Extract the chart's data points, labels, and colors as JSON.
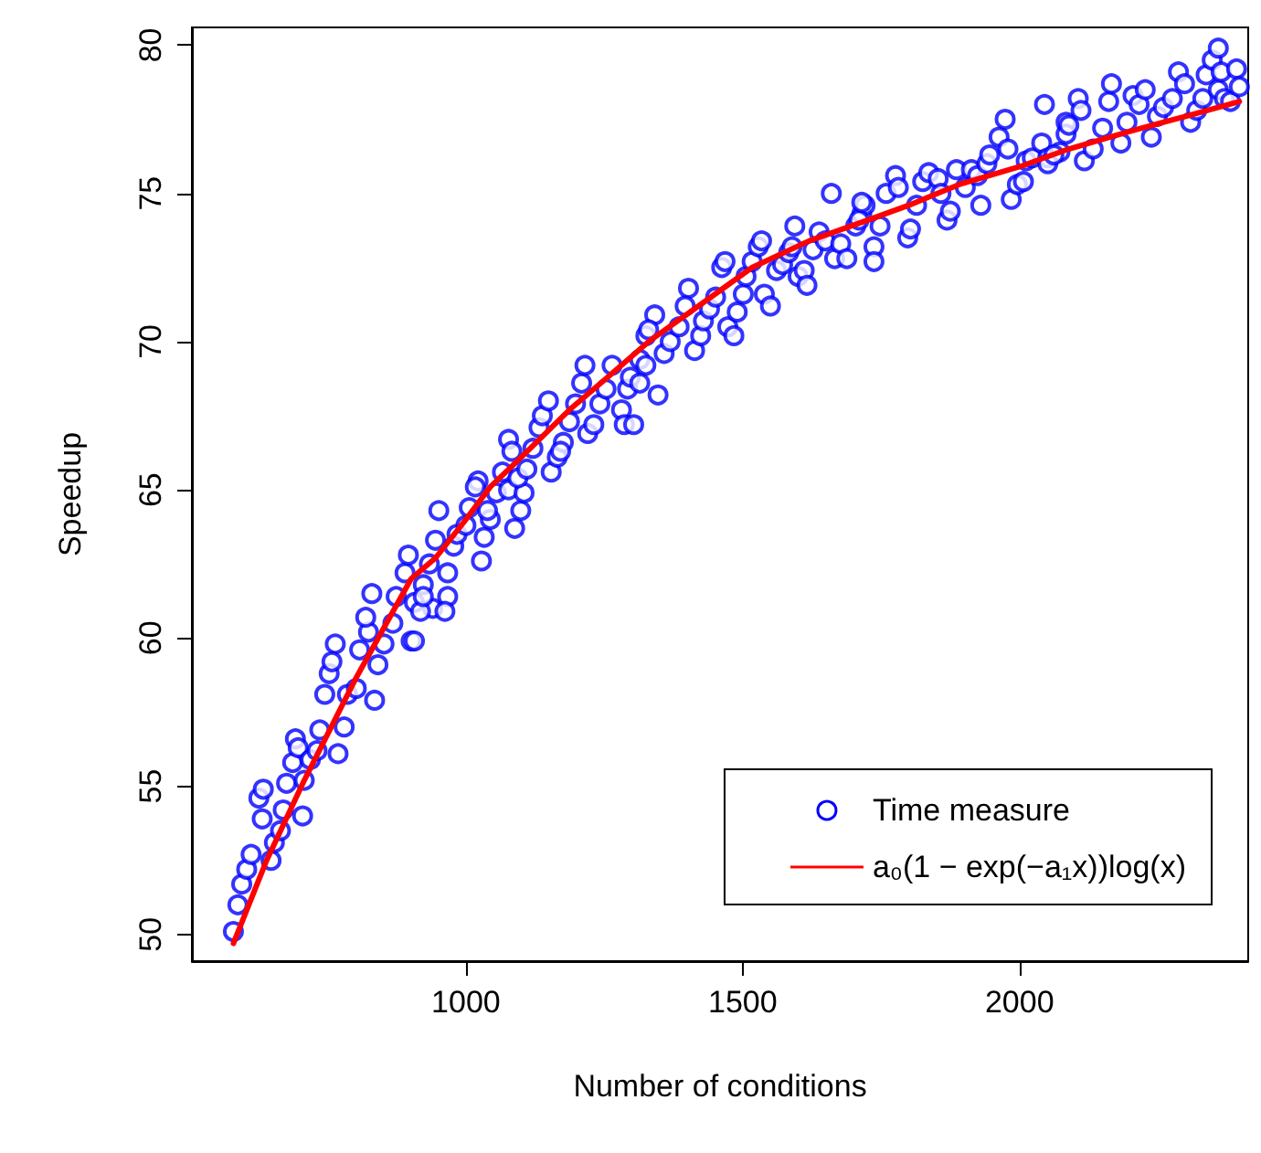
{
  "chart_data": {
    "type": "scatter",
    "xlabel": "Number of conditions",
    "ylabel": "Speedup",
    "xlim": [
      505,
      2413
    ],
    "ylim": [
      49.1,
      80.6
    ],
    "xticks": [
      1000,
      1500,
      2000
    ],
    "yticks": [
      50,
      55,
      60,
      65,
      70,
      75,
      80
    ],
    "grid": false,
    "legend": "bottom right",
    "marker": "circle",
    "series": [
      {
        "name": "Time measure",
        "color": "#0000ff",
        "x": [
          580,
          588,
          595,
          604,
          612,
          632,
          626,
          634,
          648,
          654,
          665,
          670,
          676,
          687,
          692,
          697,
          708,
          719,
          736,
          731,
          705,
          769,
          780,
          745,
          753,
          764,
          758,
          786,
          802,
          808,
          824,
          819,
          835,
          841,
          852,
          830,
          868,
          874,
          901,
          890,
          907,
          923,
          940,
          896,
          907,
          918,
          923,
          967,
          962,
          967,
          934,
          945,
          951,
          978,
          984,
          1000,
          1006,
          1022,
          1017,
          1028,
          1033,
          1044,
          1039,
          1055,
          1066,
          1077,
          1088,
          1099,
          1105,
          1094,
          1110,
          1077,
          1083,
          1121,
          1132,
          1138,
          1149,
          1154,
          1165,
          1176,
          1171,
          1187,
          1198,
          1209,
          1215,
          1220,
          1231,
          1242,
          1253,
          1264,
          1281,
          1286,
          1292,
          1297,
          1314,
          1325,
          1303,
          1314,
          1325,
          1347,
          1341,
          1330,
          1358,
          1369,
          1385,
          1402,
          1396,
          1413,
          1424,
          1429,
          1440,
          1451,
          1462,
          1468,
          1473,
          1484,
          1490,
          1501,
          1506,
          1517,
          1528,
          1534,
          1539,
          1550,
          1561,
          1572,
          1583,
          1589,
          1594,
          1600,
          1611,
          1616,
          1627,
          1638,
          1649,
          1660,
          1666,
          1677,
          1688,
          1704,
          1715,
          1721,
          1710,
          1715,
          1737,
          1737,
          1748,
          1759,
          1776,
          1781,
          1798,
          1803,
          1814,
          1825,
          1836,
          1853,
          1858,
          1869,
          1875,
          1886,
          1902,
          1913,
          1924,
          1930,
          1941,
          1946,
          1963,
          1974,
          1979,
          1985,
          1996,
          2007,
          2012,
          2023,
          2040,
          2051,
          2073,
          2045,
          2084,
          2051,
          2062,
          2084,
          2089,
          2106,
          2111,
          2117,
          2133,
          2150,
          2161,
          2166,
          2183,
          2194,
          2205,
          2216,
          2227,
          2238,
          2249,
          2260,
          2276,
          2287,
          2298,
          2309,
          2320,
          2331,
          2337,
          2348,
          2359,
          2364,
          2370,
          2381,
          2392,
          2397,
          2359
        ],
        "values": [
          50.1,
          51.0,
          51.7,
          52.2,
          52.7,
          53.9,
          54.6,
          54.9,
          52.5,
          53.1,
          53.5,
          54.2,
          55.1,
          55.8,
          56.6,
          56.3,
          55.2,
          55.9,
          56.9,
          56.2,
          54.0,
          56.1,
          57.0,
          58.1,
          58.8,
          59.8,
          59.2,
          58.1,
          58.3,
          59.6,
          60.2,
          60.7,
          57.9,
          59.1,
          59.8,
          61.5,
          60.5,
          61.4,
          59.9,
          62.2,
          61.2,
          61.8,
          61.0,
          62.8,
          59.9,
          60.9,
          61.4,
          61.4,
          60.9,
          62.2,
          62.5,
          63.3,
          64.3,
          63.1,
          63.5,
          63.8,
          64.4,
          65.3,
          65.1,
          62.6,
          63.4,
          64.0,
          64.3,
          64.9,
          65.6,
          65.0,
          63.7,
          64.3,
          64.9,
          65.4,
          65.7,
          66.7,
          66.3,
          66.4,
          67.1,
          67.5,
          68.0,
          65.6,
          66.1,
          66.6,
          66.3,
          67.3,
          67.9,
          68.6,
          69.2,
          66.9,
          67.2,
          67.9,
          68.4,
          69.2,
          67.7,
          67.2,
          68.4,
          68.8,
          69.4,
          70.2,
          67.2,
          68.6,
          69.2,
          68.2,
          70.9,
          70.4,
          69.6,
          70.0,
          70.5,
          71.8,
          71.2,
          69.7,
          70.2,
          70.7,
          71.1,
          71.5,
          72.5,
          72.7,
          70.5,
          70.2,
          71.0,
          71.6,
          72.2,
          72.7,
          73.2,
          73.4,
          71.6,
          71.2,
          72.4,
          72.6,
          73.0,
          73.2,
          73.9,
          72.2,
          72.4,
          71.9,
          73.1,
          73.7,
          73.4,
          75.0,
          72.8,
          73.3,
          72.8,
          73.9,
          74.3,
          74.6,
          74.1,
          74.7,
          73.2,
          72.7,
          73.9,
          75.0,
          75.6,
          75.2,
          73.5,
          73.8,
          74.6,
          75.4,
          75.7,
          75.5,
          75.0,
          74.1,
          74.4,
          75.8,
          75.2,
          75.8,
          75.6,
          74.6,
          76.0,
          76.3,
          76.9,
          77.5,
          76.5,
          74.8,
          75.3,
          75.4,
          76.1,
          76.2,
          76.7,
          76.2,
          76.4,
          78.0,
          77.4,
          76.0,
          76.3,
          77.0,
          77.3,
          78.2,
          77.8,
          76.1,
          76.5,
          77.2,
          78.1,
          78.7,
          76.7,
          77.4,
          78.3,
          78.0,
          78.5,
          76.9,
          77.6,
          77.9,
          78.2,
          79.1,
          78.7,
          77.4,
          77.8,
          78.2,
          79.0,
          79.5,
          78.5,
          79.1,
          78.2,
          78.1,
          79.2,
          78.6,
          79.9
        ]
      },
      {
        "name": "a₀(1 − exp(−a₁x))log(x)",
        "type": "line",
        "color": "#ff0000",
        "marker": "none",
        "line_style": "solid",
        "x": [
          580,
          640,
          708,
          800,
          901,
          945,
          1000,
          1044,
          1100,
          1187,
          1250,
          1330,
          1420,
          1517,
          1620,
          1726,
          1800,
          1891,
          2000,
          2089,
          2200,
          2300,
          2397
        ],
        "values": [
          49.7,
          52.5,
          55.2,
          58.6,
          62.0,
          62.7,
          64.0,
          65.1,
          66.1,
          67.7,
          68.7,
          70.0,
          71.2,
          72.5,
          73.4,
          74.1,
          74.6,
          75.3,
          75.9,
          76.5,
          77.1,
          77.6,
          78.1
        ]
      }
    ]
  }
}
